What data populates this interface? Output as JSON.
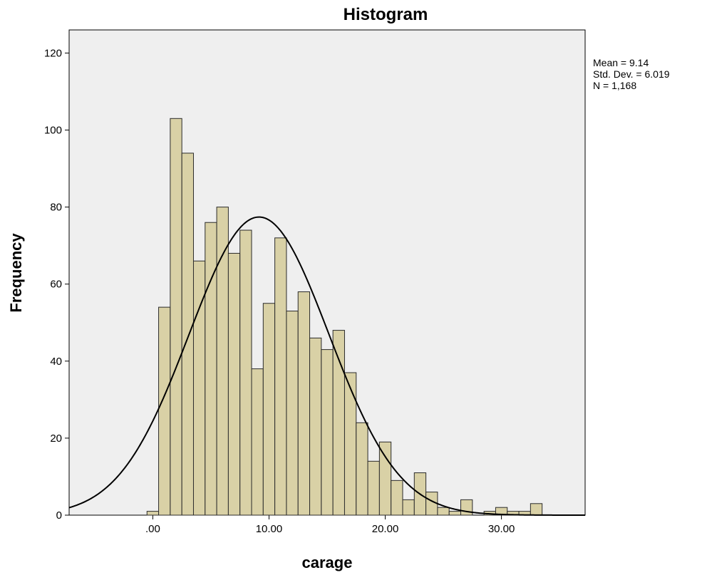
{
  "chart_data": {
    "type": "histogram",
    "title": "Histogram",
    "xlabel": "carage",
    "ylabel": "Frequency",
    "xlim": [
      -7.2,
      37.2
    ],
    "ylim": [
      0,
      126
    ],
    "x_ticks": [
      ".00",
      "10.00",
      "20.00",
      "30.00"
    ],
    "x_tick_values": [
      0,
      10,
      20,
      30
    ],
    "y_ticks": [
      "0",
      "20",
      "40",
      "60",
      "80",
      "100",
      "120"
    ],
    "y_tick_values": [
      0,
      20,
      40,
      60,
      80,
      100,
      120
    ],
    "bin_width": 1,
    "bin_start": -0.5,
    "counts": [
      1,
      54,
      103,
      94,
      66,
      76,
      80,
      68,
      74,
      38,
      55,
      72,
      53,
      58,
      46,
      43,
      48,
      37,
      24,
      14,
      19,
      9,
      4,
      11,
      6,
      2,
      1,
      4,
      0,
      1,
      2,
      1,
      1,
      3
    ],
    "normal_curve": {
      "mean": 9.14,
      "std_dev": 6.019,
      "n": 1168
    },
    "stats": {
      "mean": "Mean = 9.14",
      "std_dev": "Std. Dev. = 6.019",
      "n": "N = 1,168"
    },
    "colors": {
      "bar_fill": "#d9d1a6",
      "bar_stroke": "#2b2b2b",
      "plot_bg": "#efefef",
      "curve": "#000000"
    }
  }
}
